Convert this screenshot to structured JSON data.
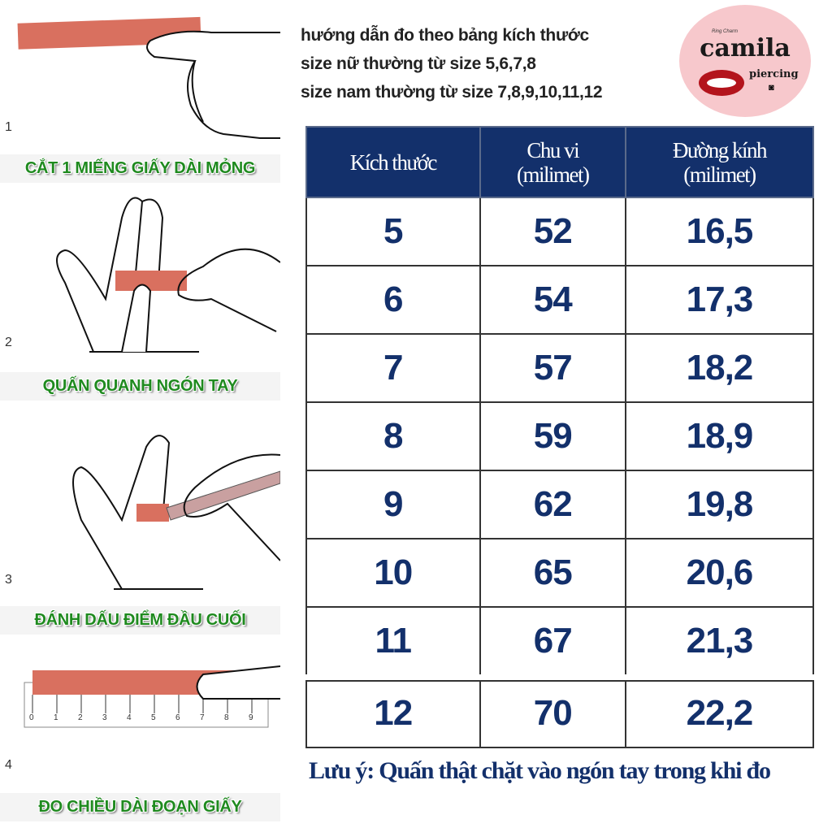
{
  "steps": [
    {
      "number": "1",
      "label": "CẮT 1 MIẾNG GIẤY DÀI MỎNG"
    },
    {
      "number": "2",
      "label": "QUẤN QUANH NGÓN TAY"
    },
    {
      "number": "3",
      "label": "ĐÁNH DẤU ĐIỂM ĐẦU CUỐI"
    },
    {
      "number": "4",
      "label": "ĐO CHIỀU DÀI ĐOẠN GIẤY"
    }
  ],
  "ruler_ticks": [
    "0",
    "1",
    "2",
    "3",
    "4",
    "5",
    "6",
    "7",
    "8",
    "9"
  ],
  "intro": [
    "hướng dẫn đo theo bảng kích thước",
    "size nữ thường từ size 5,6,7,8",
    "size nam thường từ size 7,8,9,10,11,12"
  ],
  "logo": {
    "brand": "camila",
    "sub": "piercing",
    "tiny": "Ring Charm"
  },
  "table": {
    "headers": [
      [
        "Kích thước"
      ],
      [
        "Chu vi",
        "(milimet)"
      ],
      [
        "Đường kính",
        "(milimet)"
      ]
    ],
    "rows": [
      [
        "5",
        "52",
        "16,5"
      ],
      [
        "6",
        "54",
        "17,3"
      ],
      [
        "7",
        "57",
        "18,2"
      ],
      [
        "8",
        "59",
        "18,9"
      ],
      [
        "9",
        "62",
        "19,8"
      ],
      [
        "10",
        "65",
        "20,6"
      ],
      [
        "11",
        "67",
        "21,3"
      ],
      [
        "12",
        "70",
        "22,2"
      ]
    ]
  },
  "note": "Lưu ý: Quấn thật chặt vào ngón tay trong khi đo",
  "colors": {
    "header_bg": "#13306b",
    "label_green": "#1f8a1f",
    "paper_strip": "#d9705f",
    "logo_bg": "#f7c8cc"
  }
}
